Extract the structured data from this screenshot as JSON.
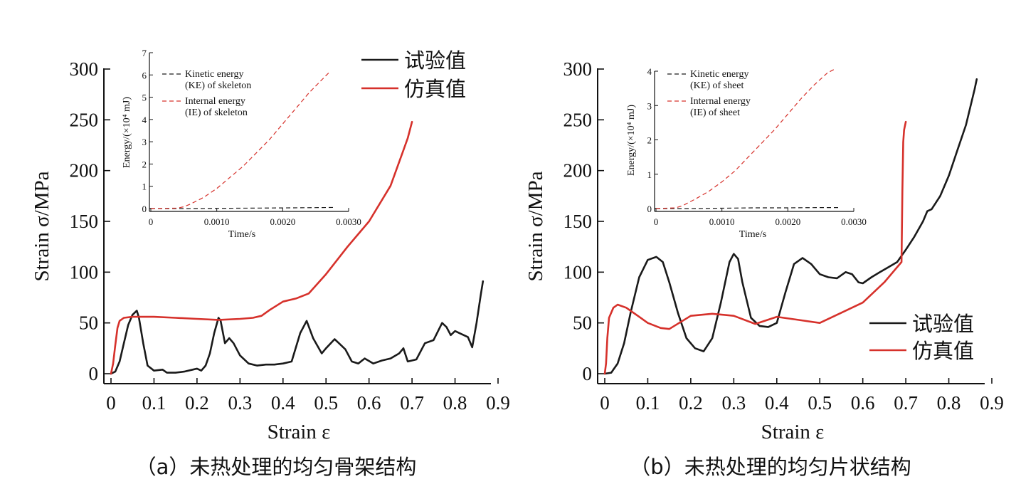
{
  "colors": {
    "experiment": "#1a1a1a",
    "simulation": "#d6312b",
    "axis": "#111111"
  },
  "chart_data": [
    {
      "type": "line",
      "caption": "（a）未热处理的均匀骨架结构",
      "xlabel": "Strain ε",
      "ylabel": "Strain σ/MPa",
      "xlim": [
        0,
        0.9
      ],
      "ylim": [
        0,
        300
      ],
      "xticks": [
        "0",
        "0.1",
        "0.2",
        "0.3",
        "0.4",
        "0.5",
        "0.6",
        "0.7",
        "0.8",
        "0.9"
      ],
      "yticks": [
        "0",
        "50",
        "100",
        "150",
        "200",
        "250",
        "300"
      ],
      "legend_position": "top-right",
      "series": [
        {
          "name": "试验值",
          "color": "#1a1a1a",
          "x": [
            0,
            0.01,
            0.02,
            0.03,
            0.04,
            0.05,
            0.06,
            0.065,
            0.075,
            0.085,
            0.1,
            0.12,
            0.13,
            0.15,
            0.17,
            0.19,
            0.2,
            0.21,
            0.22,
            0.23,
            0.24,
            0.25,
            0.255,
            0.265,
            0.275,
            0.285,
            0.3,
            0.32,
            0.34,
            0.36,
            0.38,
            0.4,
            0.42,
            0.44,
            0.455,
            0.47,
            0.49,
            0.5,
            0.52,
            0.53,
            0.545,
            0.56,
            0.575,
            0.59,
            0.61,
            0.63,
            0.65,
            0.67,
            0.68,
            0.69,
            0.71,
            0.73,
            0.75,
            0.77,
            0.78,
            0.79,
            0.8,
            0.81,
            0.83,
            0.84,
            0.85,
            0.86,
            0.865
          ],
          "y": [
            0,
            2,
            12,
            30,
            48,
            58,
            62,
            55,
            30,
            8,
            3,
            4,
            1,
            1,
            2,
            4,
            5,
            3,
            8,
            20,
            40,
            55,
            52,
            30,
            35,
            30,
            18,
            10,
            8,
            9,
            9,
            10,
            12,
            40,
            52,
            35,
            20,
            25,
            34,
            30,
            24,
            12,
            10,
            15,
            10,
            13,
            15,
            20,
            25,
            12,
            14,
            30,
            33,
            50,
            46,
            38,
            42,
            40,
            36,
            26,
            50,
            78,
            91
          ]
        },
        {
          "name": "仿真值",
          "color": "#d6312b",
          "x": [
            0,
            0.005,
            0.01,
            0.015,
            0.02,
            0.03,
            0.05,
            0.1,
            0.15,
            0.2,
            0.25,
            0.3,
            0.33,
            0.35,
            0.37,
            0.4,
            0.43,
            0.46,
            0.5,
            0.55,
            0.6,
            0.65,
            0.68,
            0.69,
            0.7
          ],
          "y": [
            0,
            10,
            28,
            45,
            52,
            55,
            56,
            56,
            55,
            54,
            53,
            54,
            55,
            57,
            63,
            71,
            74,
            79,
            98,
            125,
            150,
            185,
            220,
            232,
            248
          ]
        }
      ],
      "inset": {
        "xlabel": "Time/s",
        "ylabel": "Energy/(×10⁴ mJ)",
        "xlim": [
          0,
          0.003
        ],
        "ylim": [
          0,
          7
        ],
        "xticks": [
          "0",
          "0.0010",
          "0.0020",
          "0.0030"
        ],
        "yticks": [
          "0",
          "1",
          "2",
          "3",
          "4",
          "5",
          "6",
          "7"
        ],
        "series": [
          {
            "name": "Kinetic energy (KE) of skeleton",
            "label_lines": [
              "Kinetic energy",
              "(KE) of skeleton"
            ],
            "color": "#1a1a1a",
            "x": [
              0,
              0.0005,
              0.001,
              0.0015,
              0.002,
              0.0025,
              0.0028
            ],
            "y": [
              0,
              0,
              0.01,
              0.02,
              0.03,
              0.04,
              0.05
            ]
          },
          {
            "name": "Internal energy (IE) of skeleton",
            "label_lines": [
              "Internal energy",
              "(IE) of skeleton"
            ],
            "color": "#d6312b",
            "x": [
              0,
              0.0004,
              0.0005,
              0.0006,
              0.0008,
              0.001,
              0.0012,
              0.0014,
              0.0016,
              0.0018,
              0.002,
              0.0022,
              0.0024,
              0.0026,
              0.0027
            ],
            "y": [
              0,
              0.02,
              0.08,
              0.2,
              0.5,
              0.9,
              1.4,
              1.9,
              2.5,
              3.1,
              3.8,
              4.5,
              5.2,
              5.8,
              6.1
            ]
          }
        ]
      }
    },
    {
      "type": "line",
      "caption": "（b）未热处理的均匀片状结构",
      "xlabel": "Strain ε",
      "ylabel": "Strain σ/MPa",
      "xlim": [
        0,
        0.9
      ],
      "ylim": [
        0,
        300
      ],
      "xticks": [
        "0",
        "0.1",
        "0.2",
        "0.3",
        "0.4",
        "0.5",
        "0.6",
        "0.7",
        "0.8",
        "0.9"
      ],
      "yticks": [
        "0",
        "50",
        "100",
        "150",
        "200",
        "250",
        "300"
      ],
      "legend_position": "right",
      "series": [
        {
          "name": "试验值",
          "color": "#1a1a1a",
          "x": [
            0,
            0.015,
            0.02,
            0.03,
            0.045,
            0.06,
            0.08,
            0.1,
            0.12,
            0.135,
            0.15,
            0.17,
            0.19,
            0.21,
            0.23,
            0.25,
            0.27,
            0.29,
            0.3,
            0.31,
            0.32,
            0.34,
            0.36,
            0.38,
            0.4,
            0.42,
            0.44,
            0.46,
            0.48,
            0.5,
            0.52,
            0.54,
            0.56,
            0.575,
            0.59,
            0.6,
            0.62,
            0.64,
            0.66,
            0.68,
            0.7,
            0.72,
            0.74,
            0.75,
            0.76,
            0.78,
            0.8,
            0.82,
            0.84,
            0.86,
            0.865
          ],
          "y": [
            0,
            1,
            4,
            10,
            30,
            60,
            95,
            112,
            115,
            110,
            90,
            60,
            35,
            25,
            22,
            35,
            70,
            110,
            118,
            113,
            90,
            55,
            47,
            46,
            50,
            80,
            108,
            114,
            108,
            98,
            95,
            94,
            100,
            98,
            90,
            89,
            95,
            100,
            105,
            110,
            122,
            135,
            150,
            160,
            162,
            175,
            195,
            220,
            245,
            280,
            290
          ]
        },
        {
          "name": "仿真值",
          "color": "#d6312b",
          "x": [
            0,
            0.003,
            0.006,
            0.01,
            0.02,
            0.03,
            0.05,
            0.08,
            0.1,
            0.13,
            0.15,
            0.2,
            0.25,
            0.3,
            0.35,
            0.4,
            0.45,
            0.5,
            0.55,
            0.6,
            0.65,
            0.69,
            0.692,
            0.694,
            0.696,
            0.7
          ],
          "y": [
            0,
            10,
            35,
            55,
            65,
            68,
            65,
            56,
            50,
            45,
            44,
            57,
            59,
            57,
            49,
            56,
            53,
            50,
            60,
            70,
            90,
            110,
            180,
            228,
            240,
            248
          ]
        }
      ],
      "inset": {
        "xlabel": "Time/s",
        "ylabel": "Energy/(×10⁴ mJ)",
        "xlim": [
          0,
          0.003
        ],
        "ylim": [
          0,
          4
        ],
        "xticks": [
          "0",
          "0.0010",
          "0.0020",
          "0.0030"
        ],
        "yticks": [
          "0",
          "1",
          "2",
          "3",
          "4"
        ],
        "series": [
          {
            "name": "Kinetic energy (KE) of sheet",
            "label_lines": [
              "Kinetic energy",
              "(KE) of sheet"
            ],
            "color": "#1a1a1a",
            "x": [
              0,
              0.0005,
              0.001,
              0.0015,
              0.002,
              0.0025,
              0.0028
            ],
            "y": [
              0,
              0,
              0.01,
              0.02,
              0.02,
              0.03,
              0.03
            ]
          },
          {
            "name": "Internal energy (IE) of sheet",
            "label_lines": [
              "Internal energy",
              "(IE) of sheet"
            ],
            "color": "#d6312b",
            "x": [
              0,
              0.0003,
              0.0004,
              0.0006,
              0.0008,
              0.001,
              0.0012,
              0.0014,
              0.0016,
              0.0018,
              0.002,
              0.0022,
              0.0024,
              0.0026,
              0.0027
            ],
            "y": [
              0,
              0.02,
              0.08,
              0.28,
              0.5,
              0.78,
              1.1,
              1.5,
              1.9,
              2.3,
              2.75,
              3.2,
              3.6,
              3.95,
              4.05
            ]
          }
        ]
      }
    }
  ]
}
